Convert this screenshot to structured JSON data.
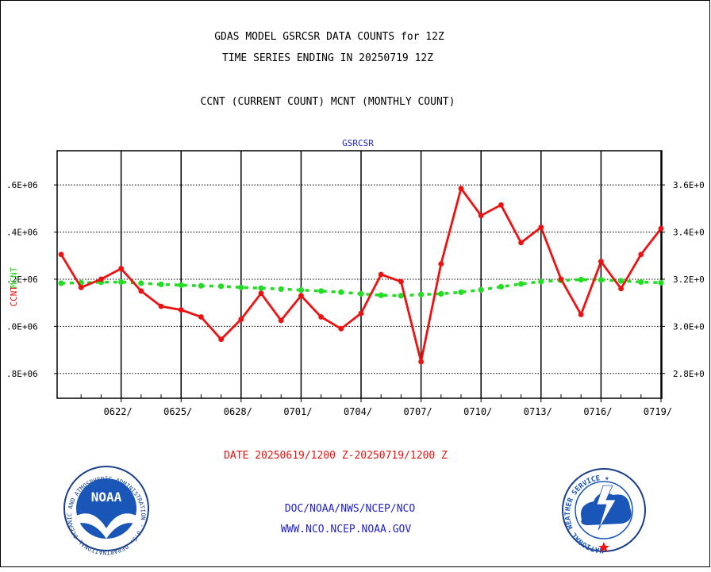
{
  "header": {
    "title_line1": "GDAS MODEL GSRCSR DATA COUNTS for 12Z",
    "title_line2": "TIME SERIES ENDING IN 20250719 12Z",
    "subtitle": "CCNT (CURRENT COUNT) MCNT (MONTHLY COUNT)"
  },
  "footer": {
    "date_range": "DATE 20250619/1200 Z-20250719/1200 Z",
    "org": "DOC/NOAA/NWS/NCEP/NCO",
    "url": "WWW.NCO.NCEP.NOAA.GOV"
  },
  "logos": {
    "noaa_text": "NOAA",
    "noaa_ring": "NATIONAL OCEANIC AND ATMOSPHERIC ADMINISTRATION · U.S. DEPARTMENT OF COMMERCE ·",
    "nws_ring": "NATIONAL WEATHER SERVICE ★"
  },
  "colors": {
    "ccnt": "#ee1111",
    "mcnt": "#22dd22",
    "title": "#000000",
    "date": "#ee1111",
    "links": "#2222cc",
    "panel_label": "#2222cc"
  },
  "chart_data": {
    "type": "line",
    "panel_label": "GSRCSR",
    "title": "GDAS MODEL GSRCSR DATA COUNTS for 12Z",
    "xlabel": "DATE 20250619/1200 Z-20250719/1200 Z",
    "ylabel_left": "CCNT",
    "ylabel_right": "MCNT",
    "x_start": "2025-06-19",
    "x_end": "2025-07-19",
    "x_ticks": [
      "0622/",
      "0625/",
      "0628/",
      "0701/",
      "0704/",
      "0707/",
      "0710/",
      "0713/",
      "0716/",
      "0719/"
    ],
    "x_tick_dates": [
      "2025-06-22",
      "2025-06-25",
      "2025-06-28",
      "2025-07-01",
      "2025-07-04",
      "2025-07-07",
      "2025-07-10",
      "2025-07-13",
      "2025-07-16",
      "2025-07-19"
    ],
    "y_left_ticks": [
      ".6E+06",
      ".4E+06",
      ".2E+06",
      ".0E+06",
      ".8E+06"
    ],
    "y_right_ticks": [
      "3.6E+0",
      "3.4E+0",
      "3.2E+0",
      "3.0E+0",
      "2.8E+0"
    ],
    "y_tick_values": [
      3.6,
      3.4,
      3.2,
      3.0,
      2.8
    ],
    "ylim": [
      2.695,
      3.745
    ],
    "grid": true,
    "series": [
      {
        "name": "CCNT",
        "color": "#ee1111",
        "x": [
          "2025-06-19",
          "2025-06-20",
          "2025-06-21",
          "2025-06-22",
          "2025-06-23",
          "2025-06-24",
          "2025-06-25",
          "2025-06-26",
          "2025-06-27",
          "2025-06-28",
          "2025-06-29",
          "2025-06-30",
          "2025-07-01",
          "2025-07-02",
          "2025-07-03",
          "2025-07-04",
          "2025-07-05",
          "2025-07-06",
          "2025-07-07",
          "2025-07-08",
          "2025-07-09",
          "2025-07-10",
          "2025-07-11",
          "2025-07-12",
          "2025-07-13",
          "2025-07-14",
          "2025-07-15",
          "2025-07-16",
          "2025-07-17",
          "2025-07-18",
          "2025-07-19"
        ],
        "values": [
          3.305,
          3.165,
          3.2,
          3.245,
          3.15,
          3.085,
          3.07,
          3.04,
          2.945,
          3.03,
          3.14,
          3.025,
          3.13,
          3.04,
          2.99,
          3.055,
          3.22,
          3.19,
          2.85,
          3.265,
          3.585,
          3.47,
          3.515,
          3.355,
          3.42,
          3.2,
          3.05,
          3.275,
          3.16,
          3.305,
          3.415
        ]
      },
      {
        "name": "MCNT",
        "color": "#22dd22",
        "x": [
          "2025-06-19",
          "2025-06-20",
          "2025-06-21",
          "2025-06-22",
          "2025-06-23",
          "2025-06-24",
          "2025-06-25",
          "2025-06-26",
          "2025-06-27",
          "2025-06-28",
          "2025-06-29",
          "2025-06-30",
          "2025-07-01",
          "2025-07-02",
          "2025-07-03",
          "2025-07-04",
          "2025-07-05",
          "2025-07-06",
          "2025-07-07",
          "2025-07-08",
          "2025-07-09",
          "2025-07-10",
          "2025-07-11",
          "2025-07-12",
          "2025-07-13",
          "2025-07-14",
          "2025-07-15",
          "2025-07-16",
          "2025-07-17",
          "2025-07-18",
          "2025-07-19"
        ],
        "values": [
          3.183,
          3.185,
          3.187,
          3.188,
          3.183,
          3.178,
          3.175,
          3.172,
          3.17,
          3.165,
          3.162,
          3.158,
          3.154,
          3.15,
          3.145,
          3.138,
          3.132,
          3.13,
          3.135,
          3.138,
          3.145,
          3.155,
          3.168,
          3.18,
          3.19,
          3.195,
          3.198,
          3.197,
          3.193,
          3.188,
          3.185
        ]
      }
    ]
  }
}
